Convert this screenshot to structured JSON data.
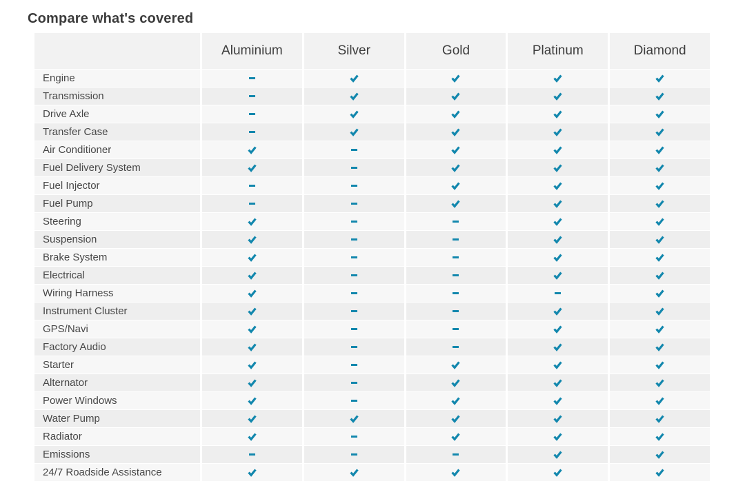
{
  "title": "Compare what's covered",
  "colors": {
    "accent": "#1287ad",
    "header_bg": "#f2f2f2",
    "row_odd_bg": "#f7f7f7",
    "row_even_bg": "#eeeeee",
    "title_color": "#3b3b3b",
    "text_color": "#474747"
  },
  "table": {
    "columns": [
      "Aluminium",
      "Silver",
      "Gold",
      "Platinum",
      "Diamond"
    ],
    "rows": [
      {
        "label": "Engine",
        "cells": [
          "dash",
          "check",
          "check",
          "check",
          "check"
        ]
      },
      {
        "label": "Transmission",
        "cells": [
          "dash",
          "check",
          "check",
          "check",
          "check"
        ]
      },
      {
        "label": "Drive Axle",
        "cells": [
          "dash",
          "check",
          "check",
          "check",
          "check"
        ]
      },
      {
        "label": "Transfer Case",
        "cells": [
          "dash",
          "check",
          "check",
          "check",
          "check"
        ]
      },
      {
        "label": "Air Conditioner",
        "cells": [
          "check",
          "dash",
          "check",
          "check",
          "check"
        ]
      },
      {
        "label": "Fuel Delivery System",
        "cells": [
          "check",
          "dash",
          "check",
          "check",
          "check"
        ]
      },
      {
        "label": "Fuel Injector",
        "cells": [
          "dash",
          "dash",
          "check",
          "check",
          "check"
        ]
      },
      {
        "label": "Fuel Pump",
        "cells": [
          "dash",
          "dash",
          "check",
          "check",
          "check"
        ]
      },
      {
        "label": "Steering",
        "cells": [
          "check",
          "dash",
          "dash",
          "check",
          "check"
        ]
      },
      {
        "label": "Suspension",
        "cells": [
          "check",
          "dash",
          "dash",
          "check",
          "check"
        ]
      },
      {
        "label": "Brake System",
        "cells": [
          "check",
          "dash",
          "dash",
          "check",
          "check"
        ]
      },
      {
        "label": "Electrical",
        "cells": [
          "check",
          "dash",
          "dash",
          "check",
          "check"
        ]
      },
      {
        "label": "Wiring Harness",
        "cells": [
          "check",
          "dash",
          "dash",
          "dash",
          "check"
        ]
      },
      {
        "label": "Instrument Cluster",
        "cells": [
          "check",
          "dash",
          "dash",
          "check",
          "check"
        ]
      },
      {
        "label": "GPS/Navi",
        "cells": [
          "check",
          "dash",
          "dash",
          "check",
          "check"
        ]
      },
      {
        "label": "Factory Audio",
        "cells": [
          "check",
          "dash",
          "dash",
          "check",
          "check"
        ]
      },
      {
        "label": "Starter",
        "cells": [
          "check",
          "dash",
          "check",
          "check",
          "check"
        ]
      },
      {
        "label": "Alternator",
        "cells": [
          "check",
          "dash",
          "check",
          "check",
          "check"
        ]
      },
      {
        "label": "Power Windows",
        "cells": [
          "check",
          "dash",
          "check",
          "check",
          "check"
        ]
      },
      {
        "label": "Water Pump",
        "cells": [
          "check",
          "check",
          "check",
          "check",
          "check"
        ]
      },
      {
        "label": "Radiator",
        "cells": [
          "check",
          "dash",
          "check",
          "check",
          "check"
        ]
      },
      {
        "label": "Emissions",
        "cells": [
          "dash",
          "dash",
          "dash",
          "check",
          "check"
        ]
      },
      {
        "label": "24/7 Roadside Assistance",
        "cells": [
          "check",
          "check",
          "check",
          "check",
          "check"
        ]
      }
    ]
  }
}
